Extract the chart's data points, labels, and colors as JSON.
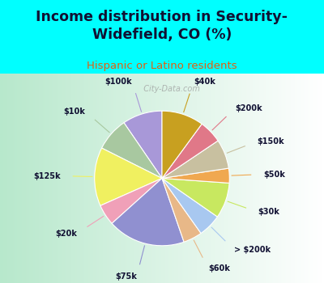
{
  "title": "Income distribution in Security-\nWidefield, CO (%)",
  "subtitle": "Hispanic or Latino residents",
  "bg_color": "#00FFFF",
  "chart_bg_left": "#b8e8c8",
  "chart_bg_right": "#e8f8f0",
  "labels": [
    "$100k",
    "$10k",
    "$125k",
    "$20k",
    "$75k",
    "$60k",
    "> $200k",
    "$30k",
    "$50k",
    "$150k",
    "$200k",
    "$40k"
  ],
  "sizes": [
    9.5,
    8.0,
    14.0,
    5.0,
    18.5,
    4.5,
    5.5,
    8.5,
    3.5,
    7.0,
    5.5,
    10.0
  ],
  "colors": [
    "#a898d8",
    "#a8c8a0",
    "#f0f060",
    "#f0a0b8",
    "#9090d0",
    "#e8b888",
    "#a8c8f0",
    "#c8e860",
    "#f0a850",
    "#c8c0a0",
    "#e07888",
    "#c8a020"
  ],
  "startangle": 90,
  "watermark": "  City-Data.com"
}
